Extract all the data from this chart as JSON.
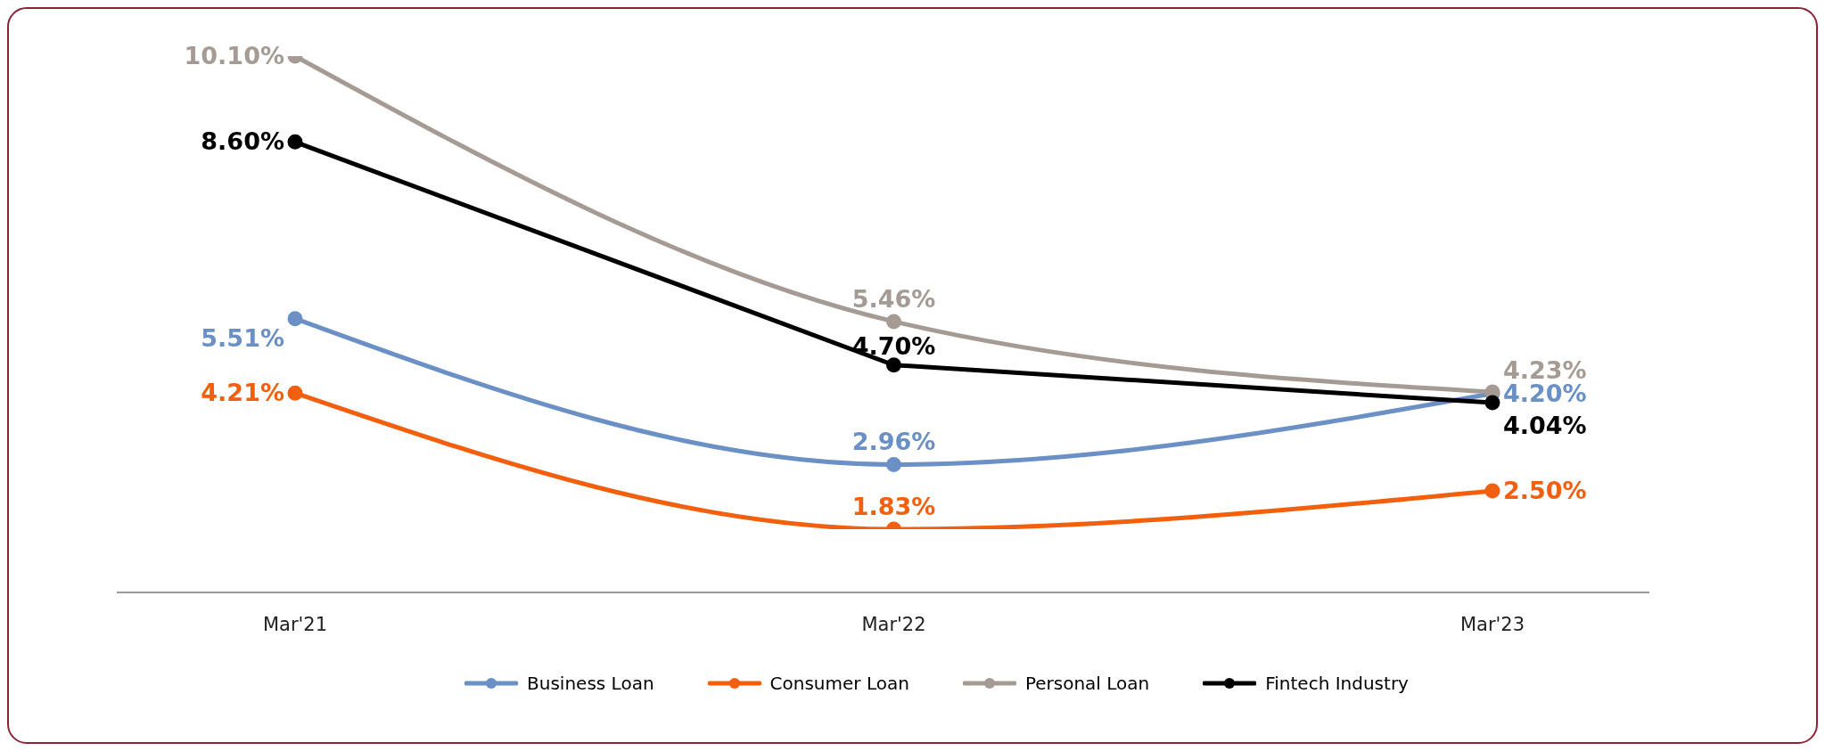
{
  "chart_data": {
    "type": "line",
    "categories": [
      "Mar'21",
      "Mar'22",
      "Mar'23"
    ],
    "series": [
      {
        "name": "Business Loan",
        "color": "#6a90c6",
        "values": [
          5.51,
          2.96,
          4.2
        ],
        "value_labels": [
          "5.51%",
          "2.96%",
          "4.20%"
        ]
      },
      {
        "name": "Consumer Loan",
        "color": "#f2600f",
        "values": [
          4.21,
          1.83,
          2.5
        ],
        "value_labels": [
          "4.21%",
          "1.83%",
          "2.50%"
        ]
      },
      {
        "name": "Personal Loan",
        "color": "#a59b94",
        "values": [
          10.1,
          5.46,
          4.23
        ],
        "value_labels": [
          "10.10%",
          "5.46%",
          "4.23%"
        ]
      },
      {
        "name": "Fintech Industry",
        "color": "#000000",
        "values": [
          8.6,
          4.7,
          4.04
        ],
        "value_labels": [
          "8.60%",
          "4.70%",
          "4.04%"
        ]
      }
    ],
    "tick_labels": "x",
    "legend": "bottom",
    "marker": "circle",
    "line_style": "solid"
  }
}
